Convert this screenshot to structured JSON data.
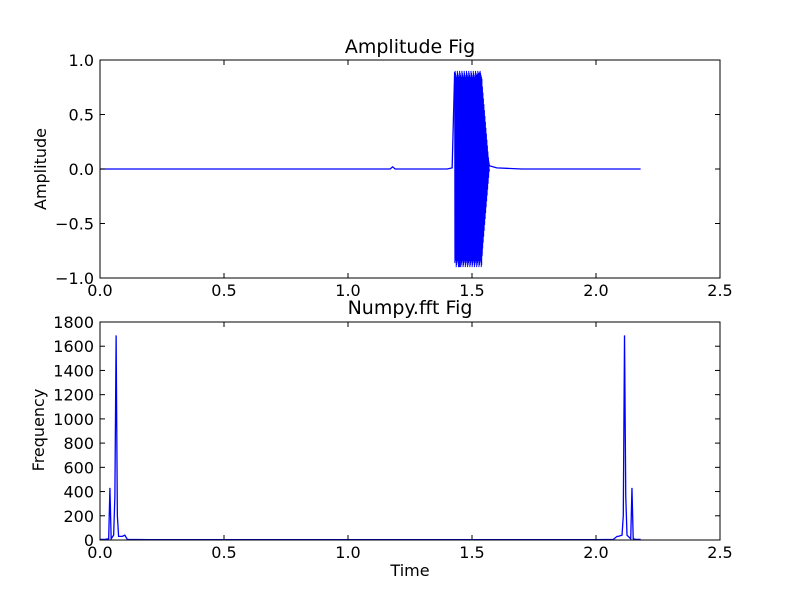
{
  "chart_data": [
    {
      "type": "line",
      "title": "Amplitude Fig",
      "xlabel": "",
      "ylabel": "Amplitude",
      "xlim": [
        0.0,
        2.5
      ],
      "ylim": [
        -1.0,
        1.0
      ],
      "xticks": [
        "0.0",
        "0.5",
        "1.0",
        "1.5",
        "2.0",
        "2.5"
      ],
      "yticks": [
        "−1.0",
        "−0.5",
        "0.0",
        "0.5",
        "1.0"
      ],
      "grid": false,
      "series": [
        {
          "color": "#0000ff",
          "x": [
            0.0,
            0.2,
            0.4,
            0.6,
            0.8,
            1.0,
            1.17,
            1.18,
            1.19,
            1.4,
            1.42,
            1.43,
            1.45,
            1.47,
            1.5,
            1.52,
            1.53,
            1.54,
            1.55,
            1.57,
            1.6,
            1.7,
            1.8,
            2.0,
            2.18
          ],
          "y": [
            0.0,
            0.0,
            0.0,
            0.0,
            0.0,
            0.0,
            0.0,
            0.02,
            0.0,
            0.0,
            0.01,
            0.89,
            -0.9,
            0.86,
            -0.85,
            0.86,
            0.88,
            -0.8,
            0.3,
            0.03,
            0.01,
            0.0,
            0.0,
            0.0,
            0.0
          ]
        }
      ]
    },
    {
      "type": "line",
      "title": "Numpy.fft Fig",
      "xlabel": "Time",
      "ylabel": "Frequency",
      "xlim": [
        0.0,
        2.5
      ],
      "ylim": [
        0,
        1800
      ],
      "xticks": [
        "0.0",
        "0.5",
        "1.0",
        "1.5",
        "2.0",
        "2.5"
      ],
      "yticks": [
        "0",
        "200",
        "400",
        "600",
        "800",
        "1000",
        "1200",
        "1400",
        "1600",
        "1800"
      ],
      "grid": false,
      "series": [
        {
          "color": "#0000ff",
          "x": [
            0.0,
            0.02,
            0.035,
            0.04,
            0.045,
            0.055,
            0.06,
            0.065,
            0.07,
            0.075,
            0.09,
            0.1,
            0.11,
            0.2,
            0.4,
            0.8,
            1.2,
            1.6,
            2.0,
            2.07,
            2.085,
            2.09,
            2.105,
            2.11,
            2.115,
            2.12,
            2.125,
            2.14,
            2.145,
            2.15,
            2.16,
            2.18
          ],
          "y": [
            5,
            5,
            10,
            430,
            10,
            40,
            360,
            1690,
            200,
            30,
            30,
            40,
            5,
            3,
            3,
            3,
            3,
            3,
            3,
            5,
            30,
            30,
            40,
            200,
            1690,
            360,
            40,
            10,
            430,
            10,
            5,
            5
          ]
        }
      ]
    }
  ]
}
